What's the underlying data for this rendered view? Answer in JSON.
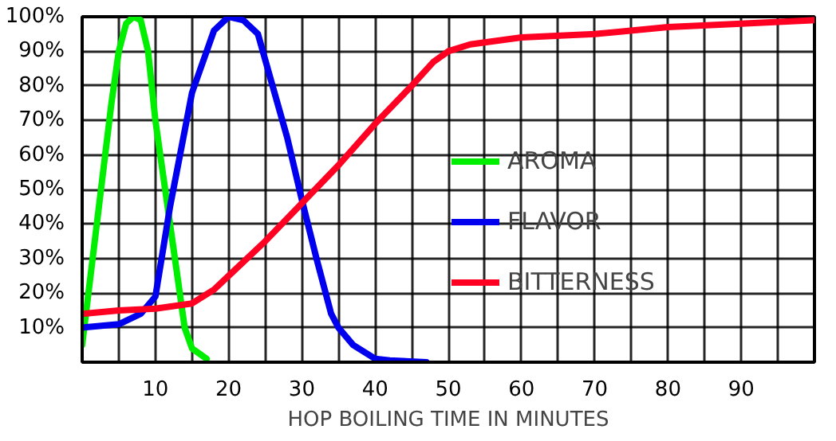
{
  "chart_data": {
    "type": "line",
    "xlabel": "HOP BOILING TIME IN MINUTES",
    "xlim": [
      0,
      100
    ],
    "ylim": [
      0,
      100
    ],
    "xticks": [
      {
        "value": 5,
        "label": null
      },
      10,
      {
        "value": 15,
        "label": null
      },
      20,
      {
        "value": 25,
        "label": null
      },
      30,
      {
        "value": 35,
        "label": null
      },
      40,
      {
        "value": 45,
        "label": null
      },
      50,
      {
        "value": 55,
        "label": null
      },
      60,
      {
        "value": 65,
        "label": null
      },
      70,
      {
        "value": 75,
        "label": null
      },
      80,
      {
        "value": 85,
        "label": null
      },
      90,
      {
        "value": 95,
        "label": null
      }
    ],
    "yticks": [
      {
        "value": 10,
        "label": "10%"
      },
      {
        "value": 20,
        "label": "20%"
      },
      {
        "value": 30,
        "label": "30%"
      },
      {
        "value": 40,
        "label": "40%"
      },
      {
        "value": 50,
        "label": "50%"
      },
      {
        "value": 60,
        "label": "60%"
      },
      {
        "value": 70,
        "label": "70%"
      },
      {
        "value": 80,
        "label": "80%"
      },
      {
        "value": 90,
        "label": "90%"
      },
      {
        "value": 100,
        "label": "100%"
      }
    ],
    "grid": true,
    "legend": "right",
    "marker": "none",
    "line_style": "solid",
    "series": [
      {
        "name": "AROMA",
        "color": "#00ee00",
        "x": [
          0,
          2,
          4,
          5,
          6,
          7,
          8,
          9,
          10,
          12,
          14,
          15,
          17
        ],
        "values": [
          5,
          40,
          75,
          90,
          98,
          100,
          99,
          90,
          70,
          40,
          10,
          4,
          1
        ]
      },
      {
        "name": "FLAVOR",
        "color": "#0000ee",
        "x": [
          0,
          5,
          8,
          10,
          12,
          15,
          18,
          20,
          22,
          24,
          26,
          28,
          30,
          32,
          34,
          35,
          37,
          40,
          42,
          47
        ],
        "values": [
          10,
          11,
          14,
          19,
          45,
          78,
          96,
          100,
          99,
          95,
          80,
          65,
          47,
          30,
          14,
          10,
          5,
          1,
          0.5,
          0
        ]
      },
      {
        "name": "BITTERNESS",
        "color": "#ff0022",
        "x": [
          0,
          5,
          10,
          15,
          18,
          20,
          25,
          30,
          35,
          40,
          45,
          48,
          50,
          53,
          60,
          70,
          80,
          90,
          100
        ],
        "values": [
          14,
          15,
          15.5,
          17,
          21,
          25,
          35,
          46,
          57,
          69,
          80,
          87,
          90,
          92,
          94,
          95,
          97,
          98,
          99
        ]
      }
    ]
  }
}
